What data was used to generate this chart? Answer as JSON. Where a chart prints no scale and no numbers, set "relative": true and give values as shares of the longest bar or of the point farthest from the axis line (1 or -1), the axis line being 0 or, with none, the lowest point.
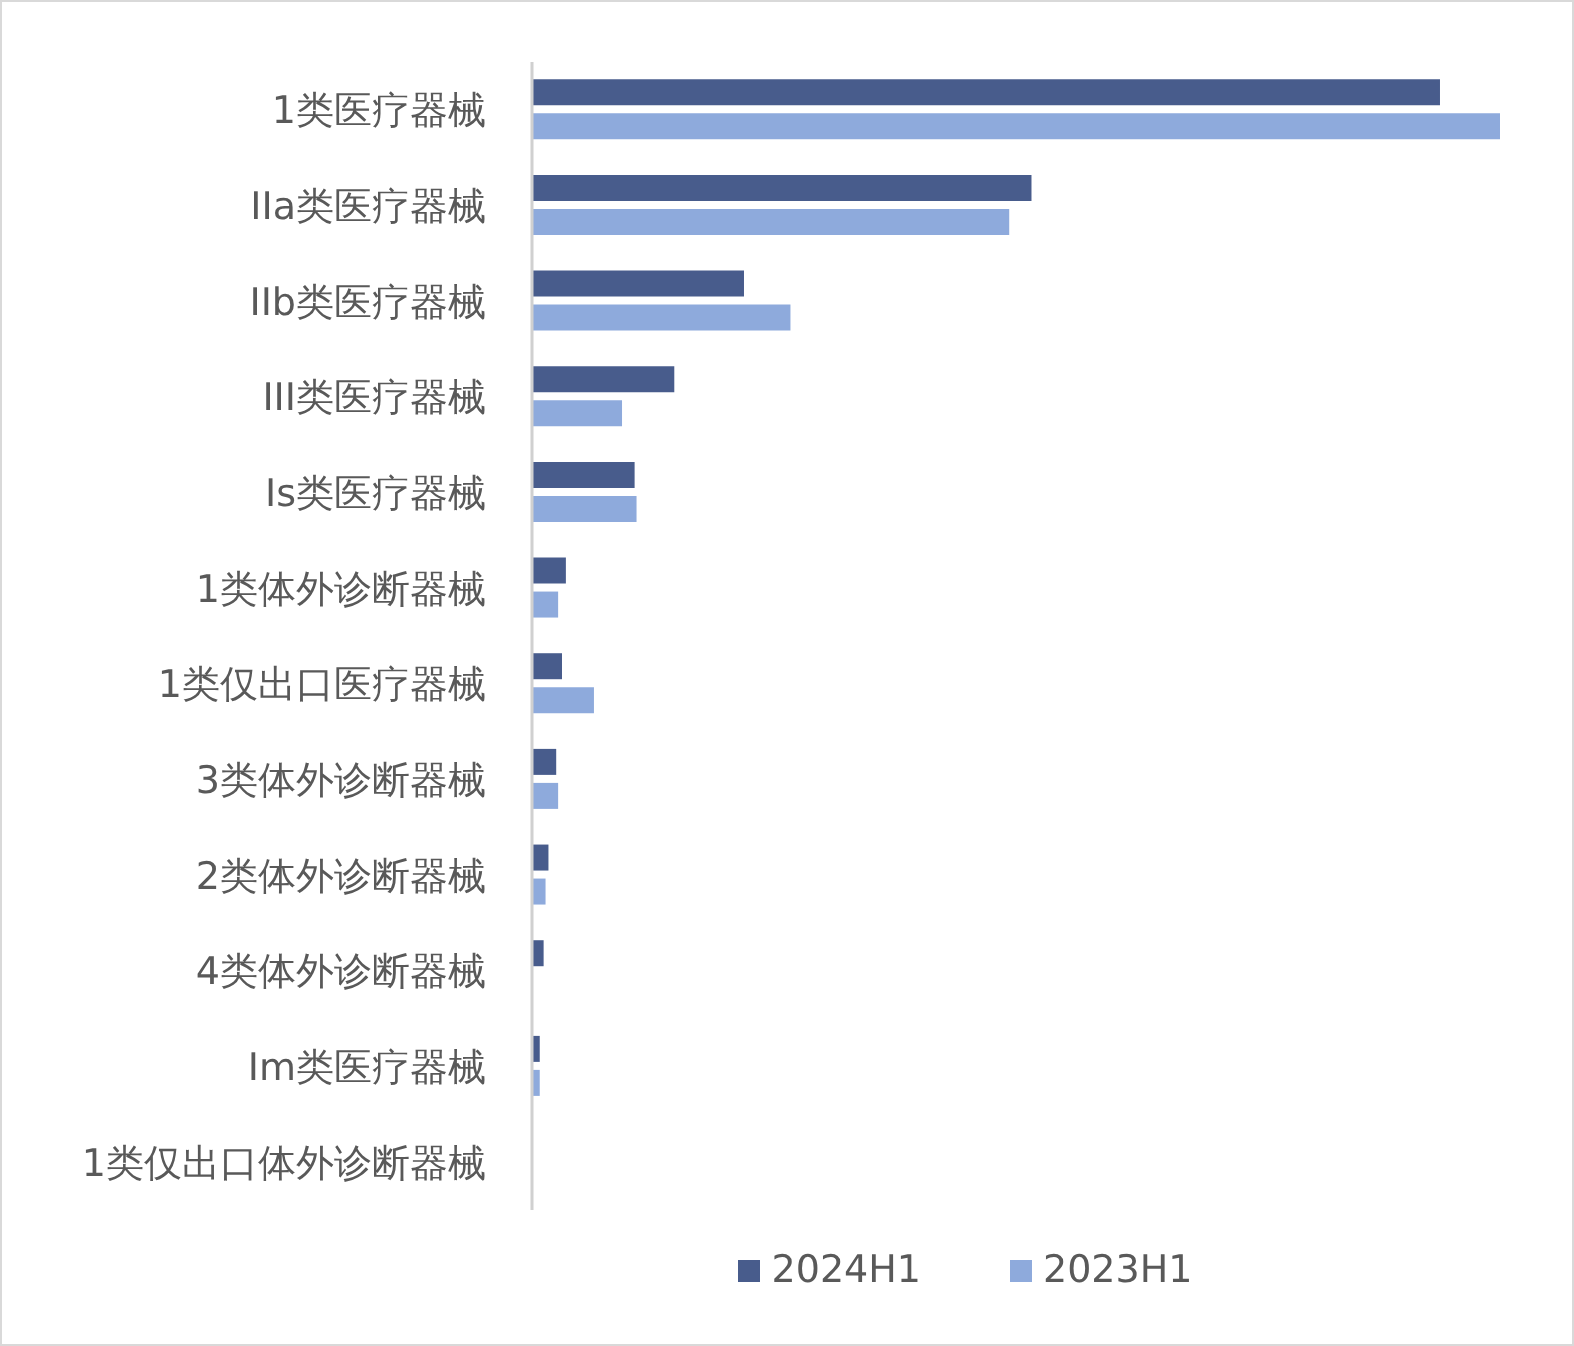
{
  "chart_data": {
    "type": "bar",
    "orientation": "horizontal",
    "relative": true,
    "categories": [
      "1类医疗器械",
      "IIa类医疗器械",
      "IIb类医疗器械",
      "III类医疗器械",
      "Is类医疗器械",
      "1类体外诊断器械",
      "1类仅出口医疗器械",
      "3类体外诊断器械",
      "2类体外诊断器械",
      "4类体外诊断器械",
      "Im类医疗器械",
      "1类仅出口体外诊断器械"
    ],
    "series": [
      {
        "name": "2024H1",
        "color": "#485c8c",
        "values": [
          0.938,
          0.516,
          0.219,
          0.147,
          0.106,
          0.035,
          0.031,
          0.025,
          0.017,
          0.012,
          0.008,
          0
        ]
      },
      {
        "name": "2023H1",
        "color": "#8eaadc",
        "values": [
          1,
          0.493,
          0.267,
          0.093,
          0.108,
          0.027,
          0.064,
          0.027,
          0.014,
          0,
          0.008,
          0
        ]
      }
    ],
    "legend": "bottom"
  }
}
